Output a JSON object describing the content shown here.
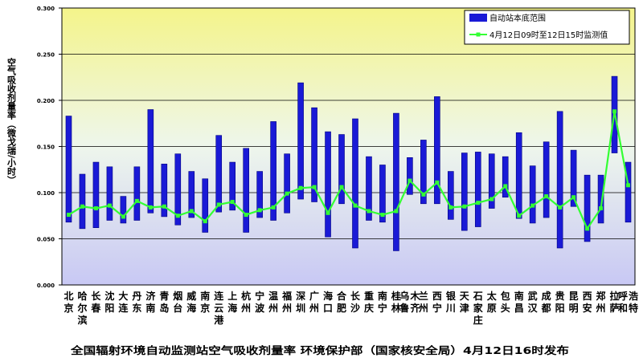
{
  "colors": {
    "bar": "#1a1ad6",
    "bar_edge": "#000080",
    "line": "#33ff33",
    "bg_top": "#f4f48a",
    "bg_mid": "#eef6ec",
    "bg_bottom": "#c8c8f4"
  },
  "chart_data": {
    "type": "bar",
    "title": "全国辐射环境自动监测站空气吸收剂量率    环境保护部（国家核安全局）4月12日16时发布",
    "ylabel": "空气吸收剂量率（微戈瑞/小时）",
    "xlabel": "",
    "ylim": [
      0,
      0.3
    ],
    "yticks": [
      "0.000",
      "0.050",
      "0.100",
      "0.150",
      "0.200",
      "0.250",
      "0.300"
    ],
    "legend_position": "top-right",
    "categories": [
      "北京",
      "哈尔滨",
      "长春",
      "沈阳",
      "大连",
      "丹东",
      "济南",
      "青岛",
      "烟台",
      "威海",
      "南京",
      "连云港",
      "上海",
      "杭州",
      "宁波",
      "温州",
      "福州",
      "深圳",
      "广州",
      "海口",
      "合肥",
      "长沙",
      "重庆",
      "南宁",
      "桂林",
      "乌鲁木齐",
      "兰州",
      "西宁",
      "银川",
      "天津",
      "石家庄",
      "太原",
      "包头",
      "南昌",
      "武汉",
      "成都",
      "贵阳",
      "昆明",
      "西安",
      "郑州",
      "拉萨",
      "呼和浩特"
    ],
    "series": [
      {
        "name": "自动站本底范围",
        "kind": "range-bar",
        "low": [
          0.068,
          0.061,
          0.062,
          0.07,
          0.067,
          0.07,
          0.078,
          0.074,
          0.065,
          0.073,
          0.057,
          0.079,
          0.081,
          0.057,
          0.073,
          0.07,
          0.078,
          0.093,
          0.09,
          0.052,
          0.088,
          0.04,
          0.07,
          0.068,
          0.037,
          0.098,
          0.088,
          0.088,
          0.071,
          0.059,
          0.063,
          0.083,
          0.095,
          0.072,
          0.067,
          0.073,
          0.04,
          0.085,
          0.047,
          0.067,
          0.143,
          0.068
        ],
        "high": [
          0.183,
          0.12,
          0.133,
          0.128,
          0.096,
          0.128,
          0.19,
          0.131,
          0.142,
          0.123,
          0.115,
          0.162,
          0.133,
          0.148,
          0.123,
          0.177,
          0.142,
          0.219,
          0.192,
          0.166,
          0.163,
          0.18,
          0.139,
          0.13,
          0.186,
          0.138,
          0.157,
          0.204,
          0.123,
          0.143,
          0.144,
          0.142,
          0.139,
          0.165,
          0.129,
          0.155,
          0.188,
          0.146,
          0.119,
          0.119,
          0.226,
          0.133
        ]
      },
      {
        "name": "4月12日09时至12日15时监测值",
        "kind": "line",
        "values": [
          0.076,
          0.085,
          0.083,
          0.086,
          0.074,
          0.091,
          0.084,
          0.085,
          0.075,
          0.08,
          0.069,
          0.087,
          0.09,
          0.076,
          0.081,
          0.084,
          0.099,
          0.105,
          0.106,
          0.078,
          0.106,
          0.086,
          0.08,
          0.076,
          0.08,
          0.113,
          0.098,
          0.111,
          0.084,
          0.085,
          0.089,
          0.093,
          0.107,
          0.075,
          0.086,
          0.096,
          0.084,
          0.095,
          0.061,
          0.083,
          0.188,
          0.108
        ]
      }
    ]
  }
}
